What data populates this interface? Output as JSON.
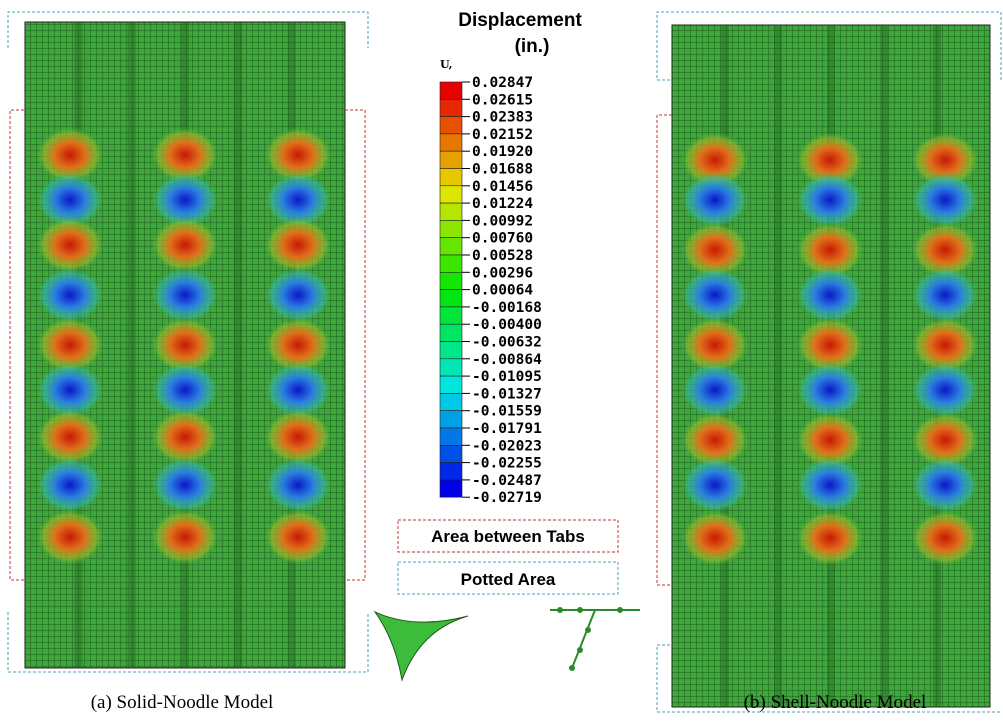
{
  "legend": {
    "title_line1": "Displacement",
    "title_line2": "(in.)",
    "component": "U,",
    "labels": [
      "0.02847",
      "0.02615",
      "0.02383",
      "0.02152",
      "0.01920",
      "0.01688",
      "0.01456",
      "0.01224",
      "0.00992",
      "0.00760",
      "0.00528",
      "0.00296",
      "0.00064",
      "-0.00168",
      "-0.00400",
      "-0.00632",
      "-0.00864",
      "-0.01095",
      "-0.01327",
      "-0.01559",
      "-0.01791",
      "-0.02023",
      "-0.02255",
      "-0.02487",
      "-0.02719"
    ]
  },
  "key": {
    "tabs": "Area between Tabs",
    "potted": "Potted Area"
  },
  "captions": {
    "left": "(a) Solid-Noodle Model",
    "right": "(b) Shell-Noodle Model"
  }
}
